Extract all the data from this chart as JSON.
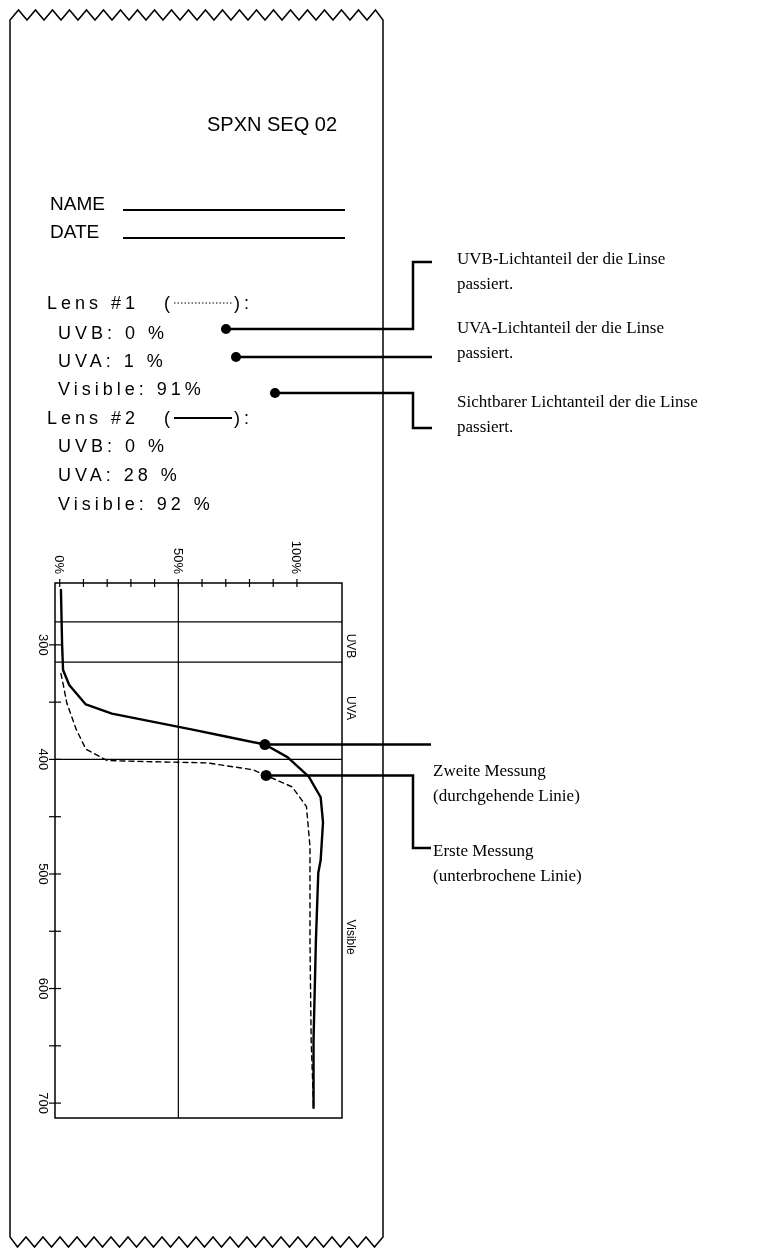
{
  "chart_data": {
    "type": "line",
    "legend": "top",
    "xlim": [
      -2,
      119
    ],
    "ylim": [
      713,
      246
    ],
    "xticks": [
      {
        "value": 0,
        "label": "0%"
      },
      {
        "value": 10,
        "label": null
      },
      {
        "value": 20,
        "label": null
      },
      {
        "value": 30,
        "label": null
      },
      {
        "value": 40,
        "label": null
      },
      {
        "value": 50,
        "label": "50%"
      },
      {
        "value": 60,
        "label": null
      },
      {
        "value": 70,
        "label": null
      },
      {
        "value": 80,
        "label": null
      },
      {
        "value": 90,
        "label": null
      },
      {
        "value": 100,
        "label": "100%"
      }
    ],
    "yticks": [
      300,
      {
        "value": 350,
        "label": null
      },
      400,
      {
        "value": 450,
        "label": null
      },
      500,
      {
        "value": 550,
        "label": null
      },
      600,
      {
        "value": 650,
        "label": null
      },
      700
    ],
    "series": [
      {
        "name": "Lens #1",
        "color": "#000000",
        "line_style": "dashed",
        "x": [
          0.5,
          1.5,
          3,
          7,
          11,
          20,
          39,
          62,
          81.5,
          87,
          98,
          104,
          105.5,
          105.5,
          106,
          107
        ],
        "values": [
          325,
          335,
          351,
          374,
          391,
          401,
          402,
          403,
          409,
          414,
          424,
          441,
          476,
          558,
          645,
          703
        ]
      },
      {
        "name": "Lens #2",
        "color": "#000000",
        "line_style": "solid",
        "x": [
          0.5,
          1,
          1.4,
          4,
          11,
          22,
          39,
          56,
          70,
          86.5,
          96,
          105,
          110,
          111,
          110,
          109,
          108,
          107,
          107
        ],
        "values": [
          252,
          300,
          322,
          335,
          352,
          360,
          367,
          374,
          380,
          387,
          398,
          415,
          433,
          455,
          488,
          499,
          558,
          645,
          704
        ]
      }
    ],
    "ref_lines": [
      {
        "axis": "x",
        "value": 50
      },
      {
        "axis": "y",
        "value": 280
      },
      {
        "axis": "y",
        "value": 315
      },
      {
        "axis": "y",
        "value": 400
      }
    ],
    "annotations": [
      "SPXN SEQ 02",
      "NAME",
      "DATE",
      "UVB: 0 %",
      "UVA: 1 %",
      "Visible: 91%",
      "UVB: 0 %",
      "UVA: 28 %",
      "Visible: 92 %",
      "UVB-Lichtanteil der die Linse passiert.",
      "UVA-Lichtanteil der die Linse passiert.",
      "Sichtbarer Lichtanteil der die Linse passiert.",
      {
        "text": "Zweite Messung (durchgehende Linie)",
        "x": 86.5,
        "y": 387
      },
      {
        "text": "Erste Messung (unterbrochene Linie)",
        "x": 87,
        "y": 414
      },
      "UVB",
      "UVA",
      "Visible",
      "(",
      "):",
      "(",
      "):"
    ]
  }
}
